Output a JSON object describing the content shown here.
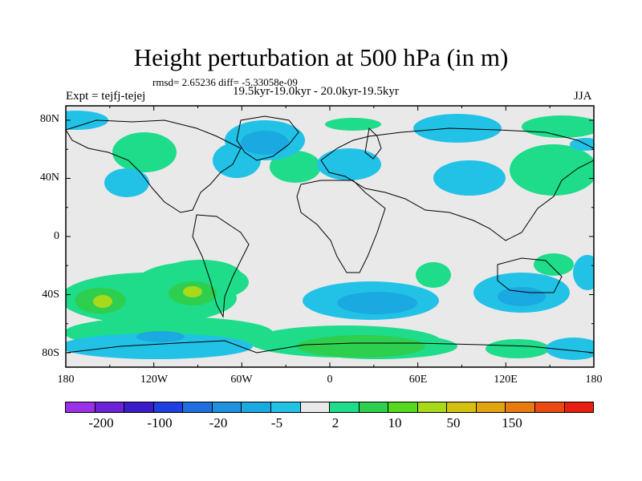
{
  "title": "Height perturbation at 500 hPa (in m)",
  "stats": "rmsd= 2.65236 diff= -5.33058e-09",
  "left_label": "Expt = tejfj-tejej",
  "center_label": "19.5kyr-19.0kyr - 20.0kyr-19.5kyr",
  "right_label": "JJA",
  "map": {
    "lat_ticks": [
      "80N",
      "40N",
      "0",
      "40S",
      "80S"
    ],
    "lon_ticks": [
      "180",
      "120W",
      "60W",
      "0",
      "60E",
      "120E",
      "180"
    ],
    "background_color": "#e9e9e9"
  },
  "colorbar": {
    "colors": [
      "#9b30e8",
      "#6c22d8",
      "#3a1dc8",
      "#1f3fe0",
      "#1f6fe0",
      "#1f92df",
      "#1aa9e0",
      "#22c2e6",
      "#e9e9e9",
      "#1edc8a",
      "#2ecf4f",
      "#56d820",
      "#a8da1a",
      "#d4c010",
      "#e3a412",
      "#e87a10",
      "#ea4a12",
      "#e81f10"
    ],
    "labels": [
      "-200",
      "-100",
      "-20",
      "-5",
      "2",
      "10",
      "50",
      "150"
    ]
  }
}
